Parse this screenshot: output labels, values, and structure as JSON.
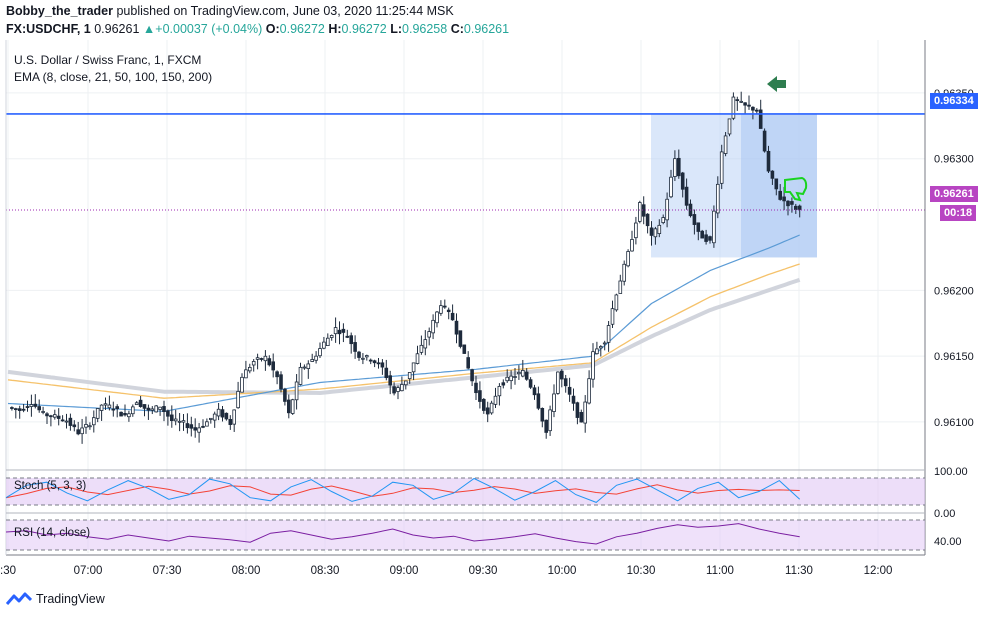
{
  "header": {
    "line1_user": "Bobby_the_trader",
    "line1_rest": "published on TradingView.com, June 03, 2020 11:25:44 MSK",
    "symbol": "FX:USDCHF, 1",
    "last": "0.96261",
    "change_arrow": "▲",
    "change": "+0.00037 (+0.04%)",
    "o_label": "O:",
    "o": "0.96272",
    "h_label": "H:",
    "h": "0.96272",
    "l_label": "L:",
    "l": "0.96258",
    "c_label": "C:",
    "c": "0.96261"
  },
  "legend": {
    "title": "U.S. Dollar / Swiss Franc, 1, FXCM",
    "ema": "EMA (8, close, 21, 50, 100, 150, 200)"
  },
  "price_pills": {
    "level": "0.96334",
    "last": "0.96261",
    "countdown": "00:18"
  },
  "indicators": {
    "stoch_label": "Stoch (5, 3, 3)",
    "stoch_ticks": [
      "100.00",
      "0.00"
    ],
    "rsi_label": "RSI (14, close)",
    "rsi_tick": "40.00"
  },
  "footer": {
    "brand": "TradingView"
  },
  "colors": {
    "up_candle": "#26a69a",
    "candle_body": "#1e2b3c",
    "level_line": "#2962ff",
    "box_fill": "#bbd3f6",
    "ema_fast": "#5b9bd5",
    "ema_mid": "#f5c26b",
    "ema_slow": "#d1d4dc",
    "stoch_k": "#2196f3",
    "stoch_d": "#f44336",
    "rsi": "#7b1fa2",
    "last_pill": "#b845c2",
    "arrow": "#2e7d4f",
    "thumbs_down": "#19d31f"
  },
  "chart_data": {
    "type": "candlestick",
    "title": "U.S. Dollar / Swiss Franc, 1, FXCM",
    "x_ticks": [
      ":30",
      "07:00",
      "07:30",
      "08:00",
      "08:30",
      "09:00",
      "09:30",
      "10:00",
      "10:30",
      "11:00",
      "11:30",
      "12:00"
    ],
    "y_ticks": [
      "0.96350",
      "0.96300",
      "0.96200",
      "0.96150",
      "0.96100"
    ],
    "ylim": [
      0.96065,
      0.96375
    ],
    "horizontal_level": 0.96334,
    "last_price": 0.96261,
    "close_path": [
      [
        0,
        0.96111
      ],
      [
        3,
        0.96109
      ],
      [
        6,
        0.96115
      ],
      [
        9,
        0.96106
      ],
      [
        12,
        0.96104
      ],
      [
        15,
        0.96101
      ],
      [
        18,
        0.96092
      ],
      [
        21,
        0.96099
      ],
      [
        24,
        0.96113
      ],
      [
        27,
        0.96111
      ],
      [
        30,
        0.96104
      ],
      [
        33,
        0.96116
      ],
      [
        36,
        0.96108
      ],
      [
        39,
        0.96112
      ],
      [
        42,
        0.96101
      ],
      [
        45,
        0.96099
      ],
      [
        48,
        0.96094
      ],
      [
        51,
        0.961
      ],
      [
        54,
        0.96108
      ],
      [
        57,
        0.96099
      ],
      [
        60,
        0.96135
      ],
      [
        63,
        0.96146
      ],
      [
        66,
        0.96149
      ],
      [
        69,
        0.96134
      ],
      [
        72,
        0.96106
      ],
      [
        75,
        0.9614
      ],
      [
        78,
        0.96147
      ],
      [
        81,
        0.9616
      ],
      [
        84,
        0.96171
      ],
      [
        87,
        0.96165
      ],
      [
        90,
        0.9615
      ],
      [
        93,
        0.96148
      ],
      [
        96,
        0.96141
      ],
      [
        99,
        0.96122
      ],
      [
        102,
        0.96132
      ],
      [
        105,
        0.96151
      ],
      [
        108,
        0.96169
      ],
      [
        111,
        0.9619
      ],
      [
        114,
        0.96178
      ],
      [
        117,
        0.9615
      ],
      [
        120,
        0.96122
      ],
      [
        123,
        0.96105
      ],
      [
        126,
        0.96128
      ],
      [
        129,
        0.96134
      ],
      [
        132,
        0.96138
      ],
      [
        135,
        0.96122
      ],
      [
        138,
        0.96092
      ],
      [
        141,
        0.96138
      ],
      [
        144,
        0.9612
      ],
      [
        147,
        0.96098
      ],
      [
        150,
        0.96152
      ],
      [
        153,
        0.96162
      ],
      [
        156,
        0.96198
      ],
      [
        159,
        0.96228
      ],
      [
        162,
        0.96265
      ],
      [
        165,
        0.9624
      ],
      [
        168,
        0.96255
      ],
      [
        171,
        0.963
      ],
      [
        174,
        0.96265
      ],
      [
        177,
        0.96243
      ],
      [
        180,
        0.96237
      ],
      [
        183,
        0.96305
      ],
      [
        186,
        0.96345
      ],
      [
        189,
        0.9634
      ],
      [
        192,
        0.96337
      ],
      [
        195,
        0.9629
      ],
      [
        198,
        0.9627
      ],
      [
        201,
        0.96264
      ],
      [
        203,
        0.96261
      ]
    ],
    "ema_fast_path": [
      [
        0,
        0.96114
      ],
      [
        40,
        0.96108
      ],
      [
        80,
        0.9613
      ],
      [
        120,
        0.9614
      ],
      [
        150,
        0.9615
      ],
      [
        165,
        0.9619
      ],
      [
        180,
        0.96215
      ],
      [
        195,
        0.96232
      ],
      [
        203,
        0.96242
      ]
    ],
    "ema_mid_path": [
      [
        0,
        0.96132
      ],
      [
        40,
        0.96118
      ],
      [
        80,
        0.96125
      ],
      [
        120,
        0.96137
      ],
      [
        150,
        0.96145
      ],
      [
        165,
        0.96172
      ],
      [
        180,
        0.96195
      ],
      [
        195,
        0.96212
      ],
      [
        203,
        0.9622
      ]
    ],
    "ema_slow_path": [
      [
        0,
        0.96138
      ],
      [
        40,
        0.96123
      ],
      [
        80,
        0.96122
      ],
      [
        120,
        0.96134
      ],
      [
        150,
        0.96143
      ],
      [
        165,
        0.96165
      ],
      [
        180,
        0.96185
      ],
      [
        195,
        0.962
      ],
      [
        203,
        0.96208
      ]
    ],
    "box_range": {
      "y_top": 0.96334,
      "y_bottom": 0.96225
    },
    "stoch_k": [
      30,
      70,
      80,
      45,
      20,
      55,
      85,
      60,
      25,
      40,
      90,
      75,
      30,
      20,
      65,
      88,
      50,
      18,
      35,
      80,
      70,
      25,
      45,
      92,
      60,
      22,
      50,
      85,
      40,
      15,
      70,
      90,
      55,
      20,
      60,
      80,
      30,
      50,
      85,
      25
    ],
    "rsi": [
      60,
      62,
      55,
      58,
      52,
      48,
      55,
      50,
      45,
      53,
      50,
      47,
      43,
      58,
      62,
      55,
      48,
      52,
      58,
      65,
      55,
      50,
      53,
      45,
      48,
      52,
      57,
      50,
      44,
      40,
      52,
      58,
      66,
      72,
      68,
      70,
      74,
      65,
      58,
      52
    ]
  }
}
